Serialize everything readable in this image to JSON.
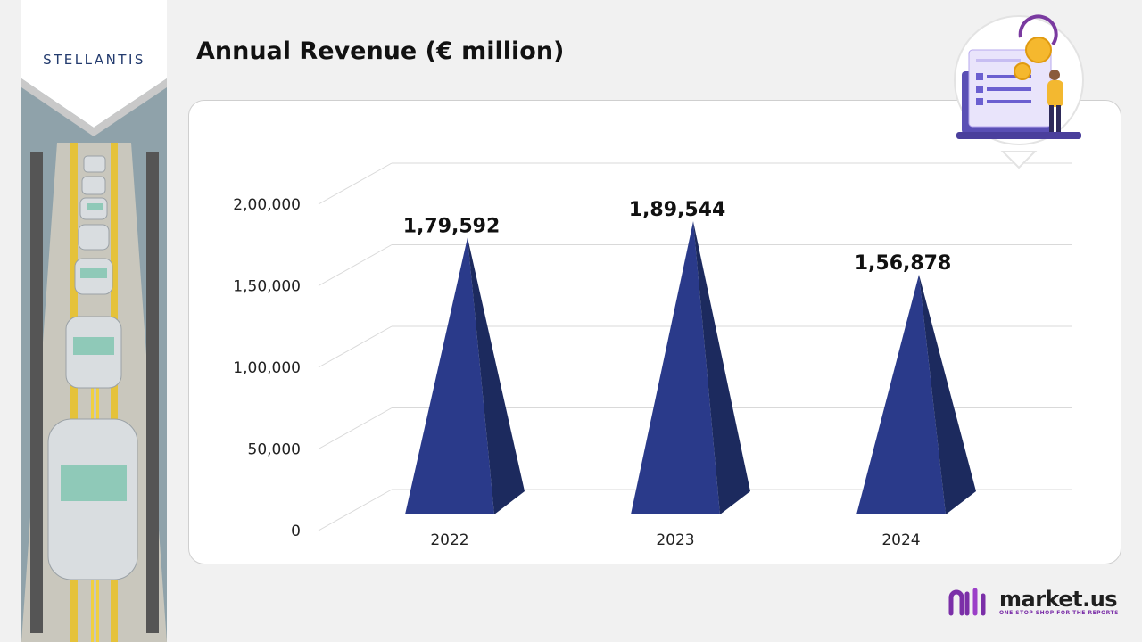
{
  "header": {
    "brand_logo_text": "STELLANTIS",
    "title": "Annual Revenue (€ million)"
  },
  "footer": {
    "brand_name": "market.us",
    "brand_tagline": "ONE STOP SHOP FOR THE REPORTS"
  },
  "colors": {
    "pyramid_front": "#2a3a8a",
    "pyramid_side": "#1c2a5e",
    "grid": "#d9d9d9",
    "brand_purple": "#7b2fa8"
  },
  "chart_data": {
    "type": "bar",
    "style": "3d-pyramid",
    "title": "Annual Revenue (€ million)",
    "xlabel": "",
    "ylabel": "",
    "categories": [
      "2022",
      "2023",
      "2024"
    ],
    "values": [
      179592,
      189544,
      156878
    ],
    "data_labels": [
      "1,79,592",
      "1,89,544",
      "1,56,878"
    ],
    "ylim": [
      0,
      200000
    ],
    "yticks": [
      0,
      50000,
      100000,
      150000,
      200000
    ],
    "ytick_labels": [
      "0",
      "50,000",
      "1,00,000",
      "1,50,000",
      "2,00,000"
    ],
    "grid": true,
    "legend": "none"
  }
}
